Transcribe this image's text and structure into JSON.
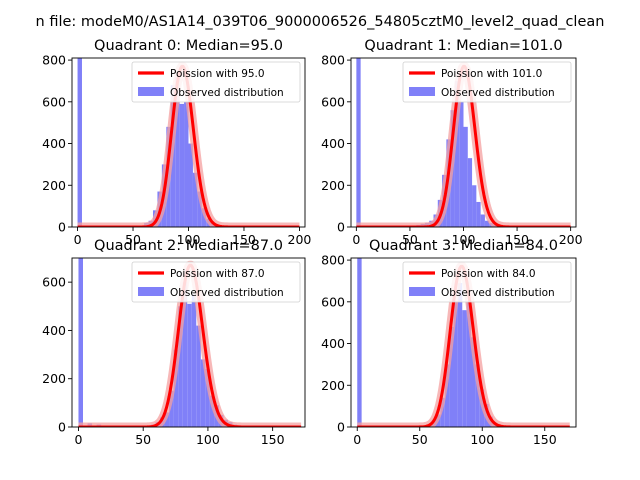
{
  "figure": {
    "suptitle": "n file: modeM0/AS1A14_039T06_9000006526_54805cztM0_level2_quad_clean"
  },
  "colors": {
    "hist": "#8080f8",
    "poisson": "#ff0000",
    "poisson_band": "#f4a0a0"
  },
  "chart_data": [
    {
      "type": "bar",
      "title": "Quadrant 0: Median=95.0",
      "xlim": [
        -5,
        205
      ],
      "ylim": [
        0,
        810
      ],
      "xticks": [
        0,
        50,
        100,
        150,
        200
      ],
      "yticks": [
        0,
        200,
        400,
        600,
        800
      ],
      "legend_position": "top-right",
      "poisson_label": "Poission with 95.0",
      "hist_label": "Observed distribution",
      "poisson_mean": 95.0,
      "poisson_peak": 770,
      "poisson_range": [
        0,
        200
      ],
      "bin_width": 4,
      "hist": {
        "x": [
          0,
          60,
          64,
          68,
          72,
          76,
          80,
          84,
          88,
          92,
          96,
          100,
          104,
          108,
          112,
          116,
          120,
          124,
          128
        ],
        "values": [
          810,
          20,
          30,
          80,
          170,
          300,
          480,
          680,
          720,
          590,
          600,
          400,
          260,
          170,
          90,
          40,
          20,
          10,
          5
        ]
      }
    },
    {
      "type": "bar",
      "title": "Quadrant 1: Median=101.0",
      "xlim": [
        -5,
        205
      ],
      "ylim": [
        0,
        810
      ],
      "xticks": [
        0,
        50,
        100,
        150,
        200
      ],
      "yticks": [
        0,
        200,
        400,
        600,
        800
      ],
      "legend_position": "top-right",
      "poisson_label": "Poission with 101.0",
      "hist_label": "Observed distribution",
      "poisson_mean": 101.0,
      "poisson_peak": 770,
      "poisson_range": [
        0,
        200
      ],
      "bin_width": 4,
      "hist": {
        "x": [
          0,
          56,
          60,
          64,
          68,
          72,
          76,
          80,
          84,
          88,
          92,
          96,
          100,
          104,
          108,
          112,
          116,
          120,
          124,
          128,
          132
        ],
        "values": [
          810,
          10,
          15,
          20,
          30,
          60,
          130,
          250,
          420,
          560,
          700,
          600,
          480,
          330,
          200,
          120,
          60,
          30,
          20,
          10,
          5
        ]
      }
    },
    {
      "type": "bar",
      "title": "Quadrant 2: Median=87.0",
      "xlim": [
        -5,
        175
      ],
      "ylim": [
        0,
        700
      ],
      "xticks": [
        0,
        50,
        100,
        150
      ],
      "yticks": [
        0,
        200,
        400,
        600
      ],
      "legend_position": "top-right",
      "poisson_label": "Poission with 87.0",
      "hist_label": "Observed distribution",
      "poisson_mean": 87.0,
      "poisson_peak": 670,
      "poisson_range": [
        0,
        172
      ],
      "bin_width": 3.5,
      "hist": {
        "x": [
          0,
          7,
          14,
          56,
          59.5,
          63,
          66.5,
          70,
          73.5,
          77,
          80.5,
          84,
          87.5,
          91,
          94.5,
          98,
          101.5,
          105,
          108.5,
          112,
          115.5,
          119,
          122.5
        ],
        "values": [
          700,
          15,
          10,
          10,
          20,
          40,
          60,
          150,
          320,
          500,
          600,
          510,
          550,
          420,
          280,
          240,
          130,
          90,
          50,
          30,
          20,
          10,
          5
        ]
      }
    },
    {
      "type": "bar",
      "title": "Quadrant 3: Median=84.0",
      "xlim": [
        -5,
        175
      ],
      "ylim": [
        0,
        810
      ],
      "xticks": [
        0,
        50,
        100,
        150
      ],
      "yticks": [
        0,
        200,
        400,
        600,
        800
      ],
      "legend_position": "top-right",
      "poisson_label": "Poission with 84.0",
      "hist_label": "Observed distribution",
      "poisson_mean": 84.0,
      "poisson_peak": 770,
      "poisson_range": [
        0,
        170
      ],
      "bin_width": 3.5,
      "hist": {
        "x": [
          0,
          56,
          59.5,
          63,
          66.5,
          70,
          73.5,
          77,
          80.5,
          84,
          87.5,
          91,
          94.5,
          98,
          101.5,
          105,
          108.5,
          112
        ],
        "values": [
          810,
          10,
          30,
          60,
          140,
          300,
          480,
          600,
          690,
          560,
          600,
          430,
          300,
          180,
          110,
          50,
          20,
          10
        ]
      }
    }
  ]
}
